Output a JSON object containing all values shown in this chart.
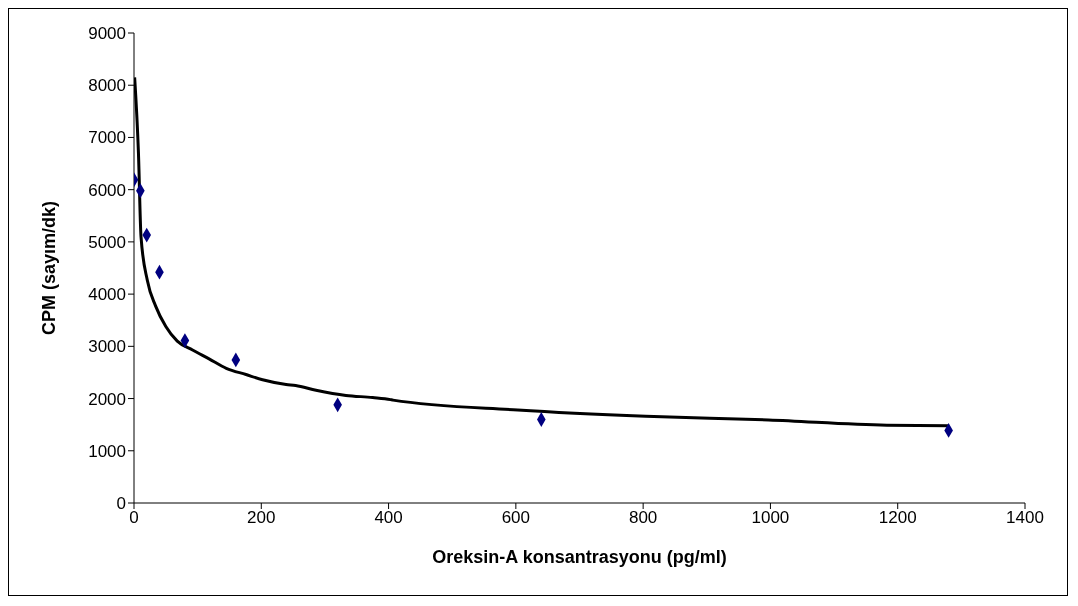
{
  "chart_data": {
    "type": "scatter",
    "xlabel": "Oreksin-A konsantrasyonu (pg/ml)",
    "ylabel": "CPM (sayım/dk)",
    "xlim": [
      0,
      1400
    ],
    "xticks": [
      0,
      200,
      400,
      600,
      800,
      1000,
      1200,
      1400
    ],
    "ylim": [
      0,
      9000
    ],
    "yticks": [
      0,
      1000,
      2000,
      3000,
      4000,
      5000,
      6000,
      7000,
      8000,
      9000
    ],
    "grid": false,
    "legend": false,
    "series": [
      {
        "color": "#000080",
        "marker": "diamond",
        "x": [
          0,
          10,
          20,
          40,
          80,
          160,
          320,
          640,
          1280
        ],
        "values": [
          6190,
          5980,
          5130,
          4420,
          3110,
          2740,
          1880,
          1600,
          1390
        ]
      },
      {
        "type": "line",
        "color": "#000000",
        "marker": "none",
        "line_style": "solid",
        "x": [
          1,
          7,
          11,
          21,
          34,
          50,
          68,
          92,
          118,
          145,
          176,
          202,
          239,
          254,
          286,
          333,
          375,
          403,
          407,
          603,
          804,
          997,
          1183,
          1280
        ],
        "values": [
          8150,
          6700,
          5100,
          4260,
          3770,
          3380,
          3100,
          2930,
          2760,
          2580,
          2460,
          2360,
          2270,
          2250,
          2160,
          2060,
          2020,
          1980,
          1970,
          1780,
          1660,
          1590,
          1490,
          1480
        ]
      }
    ]
  }
}
